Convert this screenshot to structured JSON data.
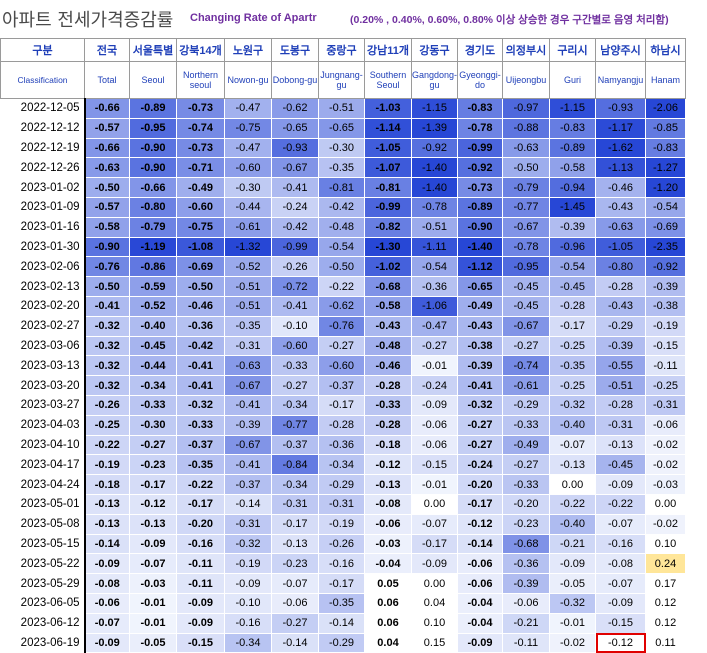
{
  "title": {
    "korean": "아파트 전세가격증감률",
    "english": "Changing Rate of Apartr",
    "note": "(0.20% , 0.40%, 0.60%, 0.80% 이상 상승한 경우 구간별로 음영 처리함)"
  },
  "header": {
    "corner_ko": "구분",
    "corner_en": "Classification",
    "columns": [
      {
        "ko": "전국",
        "en": "Total"
      },
      {
        "ko": "서울특별",
        "en": "Seoul"
      },
      {
        "ko": "강북14개",
        "en": "Northern seoul"
      },
      {
        "ko": "노원구",
        "en": "Nowon-gu"
      },
      {
        "ko": "도봉구",
        "en": "Dobong-gu"
      },
      {
        "ko": "중랑구",
        "en": "Jungnang-gu"
      },
      {
        "ko": "강남11개",
        "en": "Southern Seoul"
      },
      {
        "ko": "강동구",
        "en": "Gangdong-gu"
      },
      {
        "ko": "경기도",
        "en": "Gyeonggi-do"
      },
      {
        "ko": "의정부시",
        "en": "Uijeongbu"
      },
      {
        "ko": "구리시",
        "en": "Guri"
      },
      {
        "ko": "남양주시",
        "en": "Namyangju"
      },
      {
        "ko": "하남시",
        "en": "Hanam"
      }
    ]
  },
  "rows": [
    {
      "date": "2022-12-05",
      "v": [
        "-0.66",
        "-0.89",
        "-0.73",
        "-0.47",
        "-0.62",
        "-0.51",
        "-1.03",
        "-1.15",
        "-0.83",
        "-0.97",
        "-1.15",
        "-0.93",
        "-2.06"
      ]
    },
    {
      "date": "2022-12-12",
      "v": [
        "-0.57",
        "-0.95",
        "-0.74",
        "-0.75",
        "-0.65",
        "-0.65",
        "-1.14",
        "-1.39",
        "-0.78",
        "-0.88",
        "-0.83",
        "-1.17",
        "-0.85"
      ]
    },
    {
      "date": "2022-12-19",
      "v": [
        "-0.66",
        "-0.90",
        "-0.73",
        "-0.47",
        "-0.93",
        "-0.30",
        "-1.05",
        "-0.92",
        "-0.99",
        "-0.63",
        "-0.89",
        "-1.62",
        "-0.83"
      ]
    },
    {
      "date": "2022-12-26",
      "v": [
        "-0.63",
        "-0.90",
        "-0.71",
        "-0.60",
        "-0.67",
        "-0.35",
        "-1.07",
        "-1.40",
        "-0.92",
        "-0.50",
        "-0.58",
        "-1.13",
        "-1.27"
      ]
    },
    {
      "date": "2023-01-02",
      "v": [
        "-0.50",
        "-0.66",
        "-0.49",
        "-0.30",
        "-0.41",
        "-0.81",
        "-0.81",
        "-1.40",
        "-0.73",
        "-0.79",
        "-0.94",
        "-0.46",
        "-1.20"
      ]
    },
    {
      "date": "2023-01-09",
      "v": [
        "-0.57",
        "-0.80",
        "-0.60",
        "-0.44",
        "-0.24",
        "-0.42",
        "-0.99",
        "-0.78",
        "-0.89",
        "-0.77",
        "-1.45",
        "-0.43",
        "-0.54"
      ]
    },
    {
      "date": "2023-01-16",
      "v": [
        "-0.58",
        "-0.79",
        "-0.75",
        "-0.61",
        "-0.42",
        "-0.48",
        "-0.82",
        "-0.51",
        "-0.90",
        "-0.67",
        "-0.39",
        "-0.63",
        "-0.69"
      ]
    },
    {
      "date": "2023-01-30",
      "v": [
        "-0.90",
        "-1.19",
        "-1.08",
        "-1.32",
        "-0.99",
        "-0.54",
        "-1.30",
        "-1.11",
        "-1.40",
        "-0.78",
        "-0.96",
        "-1.05",
        "-2.35"
      ]
    },
    {
      "date": "2023-02-06",
      "v": [
        "-0.76",
        "-0.86",
        "-0.69",
        "-0.52",
        "-0.26",
        "-0.50",
        "-1.02",
        "-0.54",
        "-1.12",
        "-0.95",
        "-0.54",
        "-0.80",
        "-0.92"
      ]
    },
    {
      "date": "2023-02-13",
      "v": [
        "-0.50",
        "-0.59",
        "-0.50",
        "-0.51",
        "-0.72",
        "-0.22",
        "-0.68",
        "-0.36",
        "-0.65",
        "-0.45",
        "-0.45",
        "-0.28",
        "-0.39"
      ]
    },
    {
      "date": "2023-02-20",
      "v": [
        "-0.41",
        "-0.52",
        "-0.46",
        "-0.51",
        "-0.41",
        "-0.62",
        "-0.58",
        "-1.06",
        "-0.49",
        "-0.45",
        "-0.28",
        "-0.43",
        "-0.38"
      ]
    },
    {
      "date": "2023-02-27",
      "v": [
        "-0.32",
        "-0.40",
        "-0.36",
        "-0.35",
        "-0.10",
        "-0.76",
        "-0.43",
        "-0.47",
        "-0.43",
        "-0.67",
        "-0.17",
        "-0.29",
        "-0.19"
      ]
    },
    {
      "date": "2023-03-06",
      "v": [
        "-0.32",
        "-0.45",
        "-0.42",
        "-0.31",
        "-0.60",
        "-0.27",
        "-0.48",
        "-0.27",
        "-0.38",
        "-0.27",
        "-0.25",
        "-0.39",
        "-0.15"
      ]
    },
    {
      "date": "2023-03-13",
      "v": [
        "-0.32",
        "-0.44",
        "-0.41",
        "-0.63",
        "-0.33",
        "-0.60",
        "-0.46",
        "-0.01",
        "-0.39",
        "-0.74",
        "-0.35",
        "-0.55",
        "-0.11"
      ]
    },
    {
      "date": "2023-03-20",
      "v": [
        "-0.32",
        "-0.34",
        "-0.41",
        "-0.67",
        "-0.27",
        "-0.37",
        "-0.28",
        "-0.24",
        "-0.41",
        "-0.61",
        "-0.25",
        "-0.51",
        "-0.25"
      ]
    },
    {
      "date": "2023-03-27",
      "v": [
        "-0.26",
        "-0.33",
        "-0.32",
        "-0.41",
        "-0.34",
        "-0.17",
        "-0.33",
        "-0.09",
        "-0.32",
        "-0.29",
        "-0.32",
        "-0.28",
        "-0.31"
      ]
    },
    {
      "date": "2023-04-03",
      "v": [
        "-0.25",
        "-0.30",
        "-0.33",
        "-0.39",
        "-0.77",
        "-0.28",
        "-0.28",
        "-0.06",
        "-0.27",
        "-0.33",
        "-0.40",
        "-0.31",
        "-0.06"
      ]
    },
    {
      "date": "2023-04-10",
      "v": [
        "-0.22",
        "-0.27",
        "-0.37",
        "-0.67",
        "-0.37",
        "-0.36",
        "-0.18",
        "-0.06",
        "-0.27",
        "-0.49",
        "-0.07",
        "-0.13",
        "-0.02"
      ]
    },
    {
      "date": "2023-04-17",
      "v": [
        "-0.19",
        "-0.23",
        "-0.35",
        "-0.41",
        "-0.84",
        "-0.34",
        "-0.12",
        "-0.15",
        "-0.24",
        "-0.27",
        "-0.13",
        "-0.45",
        "-0.02"
      ]
    },
    {
      "date": "2023-04-24",
      "v": [
        "-0.18",
        "-0.17",
        "-0.22",
        "-0.37",
        "-0.34",
        "-0.29",
        "-0.13",
        "-0.01",
        "-0.20",
        "-0.33",
        "0.00",
        "-0.09",
        "-0.03"
      ]
    },
    {
      "date": "2023-05-01",
      "v": [
        "-0.13",
        "-0.12",
        "-0.17",
        "-0.14",
        "-0.31",
        "-0.31",
        "-0.08",
        "0.00",
        "-0.17",
        "-0.20",
        "-0.22",
        "-0.22",
        "0.00"
      ]
    },
    {
      "date": "2023-05-08",
      "v": [
        "-0.13",
        "-0.13",
        "-0.20",
        "-0.31",
        "-0.17",
        "-0.19",
        "-0.06",
        "-0.07",
        "-0.12",
        "-0.23",
        "-0.40",
        "-0.07",
        "-0.02"
      ]
    },
    {
      "date": "2023-05-15",
      "v": [
        "-0.14",
        "-0.09",
        "-0.16",
        "-0.32",
        "-0.13",
        "-0.26",
        "-0.03",
        "-0.17",
        "-0.14",
        "-0.68",
        "-0.21",
        "-0.16",
        "0.10"
      ]
    },
    {
      "date": "2023-05-22",
      "v": [
        "-0.09",
        "-0.07",
        "-0.11",
        "-0.19",
        "-0.23",
        "-0.16",
        "-0.04",
        "-0.09",
        "-0.06",
        "-0.36",
        "-0.09",
        "-0.08",
        "0.24"
      ]
    },
    {
      "date": "2023-05-29",
      "v": [
        "-0.08",
        "-0.03",
        "-0.11",
        "-0.09",
        "-0.07",
        "-0.17",
        "0.05",
        "0.00",
        "-0.06",
        "-0.39",
        "-0.05",
        "-0.07",
        "0.17"
      ]
    },
    {
      "date": "2023-06-05",
      "v": [
        "-0.06",
        "-0.01",
        "-0.09",
        "-0.10",
        "-0.06",
        "-0.35",
        "0.06",
        "0.04",
        "-0.04",
        "-0.06",
        "-0.32",
        "-0.09",
        "0.12"
      ]
    },
    {
      "date": "2023-06-12",
      "v": [
        "-0.07",
        "-0.01",
        "-0.09",
        "-0.16",
        "-0.27",
        "-0.14",
        "0.06",
        "0.10",
        "-0.04",
        "-0.21",
        "-0.01",
        "-0.15",
        "0.12"
      ]
    },
    {
      "date": "2023-06-19",
      "v": [
        "-0.09",
        "-0.05",
        "-0.15",
        "-0.34",
        "-0.14",
        "-0.29",
        "0.04",
        "0.15",
        "-0.09",
        "-0.11",
        "-0.02",
        "-0.12",
        "0.11"
      ]
    }
  ],
  "highlight_note": {
    "row": "2023-06-19",
    "column": "남양주시",
    "value": "-0.12"
  },
  "bold_columns": [
    0,
    1,
    2,
    6,
    8
  ],
  "colors": {
    "header_text": "#1f3fb8",
    "title_purple": "#7030a0",
    "positive_shade": "#ffe699",
    "highlight_box": "#e00000"
  }
}
